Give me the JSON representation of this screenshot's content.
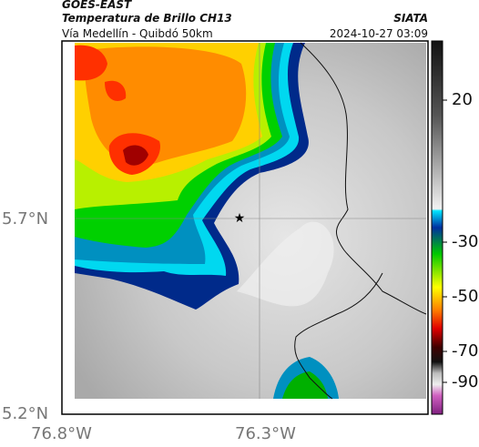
{
  "header": {
    "title": "GOES-EAST",
    "subtitle": "Temperatura de Brillo CH13",
    "source": "SIATA",
    "region": "Vía Medellín - Quibdó 50km",
    "timestamp": "2024-10-27 03:09"
  },
  "map": {
    "lat_labels": [
      "5.7°N",
      "5.2°N"
    ],
    "lon_labels": [
      "76.8°W",
      "76.3°W"
    ]
  },
  "colorbar": {
    "ticks": [
      "20",
      "-30",
      "-50",
      "-70",
      "-90"
    ]
  }
}
